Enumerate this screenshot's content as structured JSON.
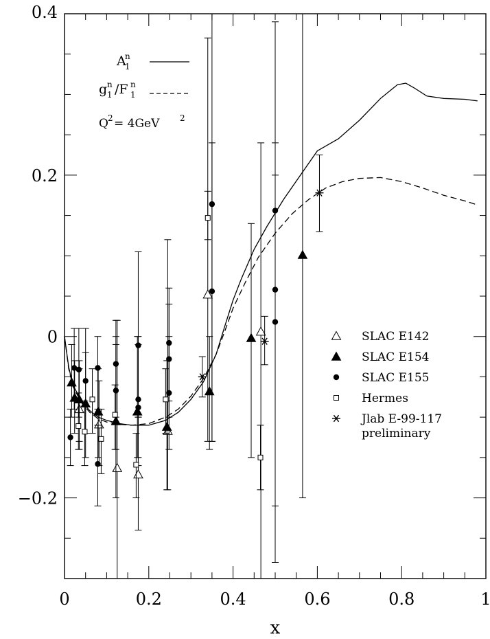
{
  "chart_data": {
    "type": "scatter",
    "xlabel": "x",
    "ylabel": "",
    "xlim": [
      0,
      1
    ],
    "ylim": [
      -0.3,
      0.4
    ],
    "x_ticks": [
      {
        "v": 0,
        "label": "0"
      },
      {
        "v": 0.2,
        "label": "0.2"
      },
      {
        "v": 0.4,
        "label": "0.4"
      },
      {
        "v": 0.6,
        "label": "0.6"
      },
      {
        "v": 0.8,
        "label": "0.8"
      },
      {
        "v": 1,
        "label": "1"
      }
    ],
    "y_ticks": [
      {
        "v": -0.2,
        "label": "−0.2"
      },
      {
        "v": 0,
        "label": "0"
      },
      {
        "v": 0.2,
        "label": "0.2"
      },
      {
        "v": 0.4,
        "label": "0.4"
      }
    ],
    "x_minor_step": 0.05,
    "y_minor_step": 0.05,
    "curve_key": [
      {
        "label": "A",
        "sup": "n",
        "sub": "1",
        "style": "solid"
      },
      {
        "label": "g/F",
        "parts": [
          [
            "g",
            "n",
            "1"
          ],
          [
            "/F",
            "n",
            "1"
          ]
        ],
        "style": "dashed"
      }
    ],
    "q2_label": "Q",
    "q2_sup": "2",
    "q2_value": " = 4GeV",
    "q2_value_sup": "2",
    "curves": [
      {
        "name": "A1n",
        "style": "solid",
        "points": [
          [
            0,
            0.0
          ],
          [
            0.01,
            -0.038
          ],
          [
            0.02,
            -0.06
          ],
          [
            0.04,
            -0.08
          ],
          [
            0.06,
            -0.092
          ],
          [
            0.08,
            -0.1
          ],
          [
            0.1,
            -0.104
          ],
          [
            0.13,
            -0.108
          ],
          [
            0.16,
            -0.11
          ],
          [
            0.2,
            -0.11
          ],
          [
            0.24,
            -0.104
          ],
          [
            0.27,
            -0.094
          ],
          [
            0.3,
            -0.078
          ],
          [
            0.33,
            -0.056
          ],
          [
            0.36,
            -0.022
          ],
          [
            0.38,
            0.012
          ],
          [
            0.4,
            0.045
          ],
          [
            0.42,
            0.072
          ],
          [
            0.45,
            0.108
          ],
          [
            0.48,
            0.136
          ],
          [
            0.52,
            0.17
          ],
          [
            0.56,
            0.2
          ],
          [
            0.6,
            0.23
          ],
          [
            0.65,
            0.245
          ],
          [
            0.7,
            0.268
          ],
          [
            0.75,
            0.295
          ],
          [
            0.79,
            0.312
          ],
          [
            0.81,
            0.314
          ],
          [
            0.83,
            0.308
          ],
          [
            0.86,
            0.298
          ],
          [
            0.9,
            0.295
          ],
          [
            0.95,
            0.294
          ],
          [
            0.98,
            0.292
          ]
        ]
      },
      {
        "name": "g1n/F1n",
        "style": "dashed",
        "points": [
          [
            0,
            0.0
          ],
          [
            0.01,
            -0.04
          ],
          [
            0.02,
            -0.062
          ],
          [
            0.04,
            -0.082
          ],
          [
            0.06,
            -0.094
          ],
          [
            0.08,
            -0.102
          ],
          [
            0.1,
            -0.106
          ],
          [
            0.13,
            -0.109
          ],
          [
            0.16,
            -0.11
          ],
          [
            0.2,
            -0.108
          ],
          [
            0.24,
            -0.1
          ],
          [
            0.27,
            -0.09
          ],
          [
            0.3,
            -0.074
          ],
          [
            0.33,
            -0.052
          ],
          [
            0.36,
            -0.022
          ],
          [
            0.38,
            0.006
          ],
          [
            0.4,
            0.035
          ],
          [
            0.43,
            0.068
          ],
          [
            0.46,
            0.098
          ],
          [
            0.5,
            0.128
          ],
          [
            0.54,
            0.152
          ],
          [
            0.58,
            0.17
          ],
          [
            0.62,
            0.184
          ],
          [
            0.66,
            0.192
          ],
          [
            0.7,
            0.196
          ],
          [
            0.75,
            0.197
          ],
          [
            0.8,
            0.192
          ],
          [
            0.85,
            0.184
          ],
          [
            0.9,
            0.175
          ],
          [
            0.95,
            0.168
          ],
          [
            0.98,
            0.163
          ]
        ]
      }
    ],
    "series": [
      {
        "name": "SLAC E142",
        "marker": "triangle-open",
        "points": [
          {
            "x": 0.035,
            "y": -0.09,
            "lo": -0.14,
            "hi": -0.04
          },
          {
            "x": 0.082,
            "y": -0.109,
            "lo": -0.16,
            "hi": -0.055
          },
          {
            "x": 0.125,
            "y": -0.163,
            "lo": -0.3,
            "hi": 0.02
          },
          {
            "x": 0.175,
            "y": -0.171,
            "lo": -0.24,
            "hi": -0.1
          },
          {
            "x": 0.245,
            "y": -0.117,
            "lo": -0.19,
            "hi": 0.12
          },
          {
            "x": 0.34,
            "y": 0.052,
            "lo": -0.13,
            "hi": 0.37
          },
          {
            "x": 0.466,
            "y": 0.006,
            "lo": -0.3,
            "hi": 0.24
          }
        ]
      },
      {
        "name": "SLAC E154",
        "marker": "triangle-filled",
        "points": [
          {
            "x": 0.017,
            "y": -0.057,
            "lo": -0.1,
            "hi": -0.01
          },
          {
            "x": 0.024,
            "y": -0.076,
            "lo": -0.12,
            "hi": -0.03
          },
          {
            "x": 0.035,
            "y": -0.078,
            "lo": -0.13,
            "hi": -0.03
          },
          {
            "x": 0.05,
            "y": -0.083,
            "lo": -0.15,
            "hi": -0.02
          },
          {
            "x": 0.08,
            "y": -0.093,
            "lo": -0.15,
            "hi": -0.04
          },
          {
            "x": 0.122,
            "y": -0.105,
            "lo": -0.2,
            "hi": -0.01
          },
          {
            "x": 0.173,
            "y": -0.093,
            "lo": -0.15,
            "hi": 0.0
          },
          {
            "x": 0.243,
            "y": -0.112,
            "lo": -0.19,
            "hi": -0.03
          },
          {
            "x": 0.344,
            "y": -0.068,
            "lo": -0.14,
            "hi": 0.0
          },
          {
            "x": 0.443,
            "y": -0.002,
            "lo": -0.15,
            "hi": 0.14
          },
          {
            "x": 0.565,
            "y": 0.101,
            "lo": -0.2,
            "hi": 0.4
          }
        ]
      },
      {
        "name": "SLAC E155",
        "marker": "circle-filled",
        "points": [
          {
            "x": 0.014,
            "y": -0.125,
            "lo": -0.16,
            "hi": -0.09
          },
          {
            "x": 0.023,
            "y": -0.039,
            "lo": -0.09,
            "hi": 0.01
          },
          {
            "x": 0.034,
            "y": -0.041,
            "lo": -0.1,
            "hi": 0.01
          },
          {
            "x": 0.05,
            "y": -0.055,
            "lo": -0.12,
            "hi": 0.01
          },
          {
            "x": 0.079,
            "y": -0.039,
            "lo": -0.09,
            "hi": 0.0
          },
          {
            "x": 0.079,
            "y": -0.158,
            "lo": -0.21,
            "hi": -0.11
          },
          {
            "x": 0.122,
            "y": -0.034,
            "lo": -0.1,
            "hi": 0.02
          },
          {
            "x": 0.122,
            "y": -0.067,
            "lo": -0.14,
            "hi": 0.0
          },
          {
            "x": 0.175,
            "y": -0.011,
            "lo": -0.1,
            "hi": 0.105
          },
          {
            "x": 0.175,
            "y": -0.078,
            "lo": -0.15,
            "hi": -0.01
          },
          {
            "x": 0.175,
            "y": -0.088,
            "lo": -0.16,
            "hi": 0.0
          },
          {
            "x": 0.248,
            "y": -0.008,
            "lo": -0.08,
            "hi": 0.06
          },
          {
            "x": 0.248,
            "y": -0.028,
            "lo": -0.1,
            "hi": 0.04
          },
          {
            "x": 0.248,
            "y": -0.07,
            "lo": -0.14,
            "hi": 0.0
          },
          {
            "x": 0.35,
            "y": 0.164,
            "lo": -0.13,
            "hi": 0.4
          },
          {
            "x": 0.35,
            "y": 0.056,
            "lo": -0.13,
            "hi": 0.24
          },
          {
            "x": 0.5,
            "y": 0.156,
            "lo": -0.28,
            "hi": 0.39
          },
          {
            "x": 0.5,
            "y": 0.058,
            "lo": -0.21,
            "hi": 0.24
          },
          {
            "x": 0.5,
            "y": 0.018,
            "lo": -0.28,
            "hi": 0.2
          }
        ]
      },
      {
        "name": "Hermes",
        "marker": "square-open",
        "points": [
          {
            "x": 0.033,
            "y": -0.111,
            "lo": -0.14,
            "hi": -0.07
          },
          {
            "x": 0.048,
            "y": -0.118,
            "lo": -0.16,
            "hi": -0.08
          },
          {
            "x": 0.066,
            "y": -0.078,
            "lo": -0.12,
            "hi": -0.04
          },
          {
            "x": 0.087,
            "y": -0.127,
            "lo": -0.17,
            "hi": -0.09
          },
          {
            "x": 0.12,
            "y": -0.097,
            "lo": -0.14,
            "hi": -0.06
          },
          {
            "x": 0.17,
            "y": -0.159,
            "lo": -0.2,
            "hi": -0.12
          },
          {
            "x": 0.24,
            "y": -0.078,
            "lo": -0.12,
            "hi": -0.04
          },
          {
            "x": 0.34,
            "y": 0.147,
            "lo": 0.12,
            "hi": 0.18
          },
          {
            "x": 0.465,
            "y": -0.15,
            "lo": -0.19,
            "hi": -0.11
          }
        ]
      },
      {
        "name": "Jlab E-99-117",
        "name2": "preliminary",
        "marker": "asterisk",
        "points": [
          {
            "x": 0.327,
            "y": -0.05,
            "lo": -0.075,
            "hi": -0.025
          },
          {
            "x": 0.475,
            "y": -0.006,
            "lo": -0.035,
            "hi": 0.025
          },
          {
            "x": 0.605,
            "y": 0.178,
            "lo": 0.13,
            "hi": 0.225
          }
        ]
      }
    ]
  }
}
